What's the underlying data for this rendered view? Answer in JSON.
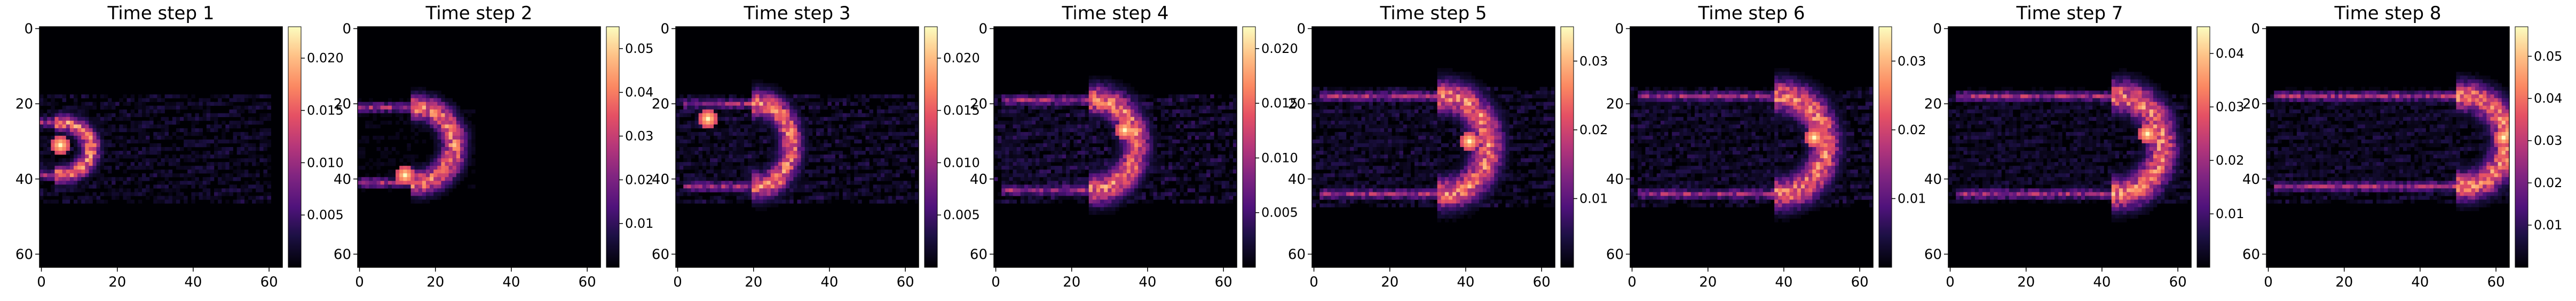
{
  "chart_data": {
    "type": "heatmap",
    "colormap": "magma",
    "grid": false,
    "xlim": [
      0,
      63
    ],
    "ylim": [
      63,
      0
    ],
    "x_ticks": [
      "0",
      "20",
      "40",
      "60"
    ],
    "y_ticks": [
      "0",
      "20",
      "40",
      "60"
    ],
    "panels": [
      {
        "title": "Time step 1",
        "vmax": 0.023,
        "colorbar_ticks": [
          "0.005",
          "0.010",
          "0.015",
          "0.020"
        ],
        "front": {
          "x0": 0,
          "x1": 13,
          "yc": 32,
          "rx": 8,
          "ry": 7,
          "peak_x": 5,
          "peak_y": 31
        },
        "wake": {
          "x_from": 0,
          "x_to": 60,
          "y_top": 18,
          "y_bottom": 46,
          "intensity": 0.2
        }
      },
      {
        "title": "Time step 2",
        "vmax": 0.055,
        "colorbar_ticks": [
          "0.01",
          "0.02",
          "0.03",
          "0.04",
          "0.05"
        ],
        "front": {
          "x0": 0,
          "x1": 25,
          "yc": 31,
          "rx": 10,
          "ry": 10,
          "peak_x": 12,
          "peak_y": 39
        },
        "wake": {
          "x_from": 0,
          "x_to": 30,
          "y_top": 20,
          "y_bottom": 42,
          "intensity": 0.08
        }
      },
      {
        "title": "Time step 3",
        "vmax": 0.023,
        "colorbar_ticks": [
          "0.005",
          "0.010",
          "0.015",
          "0.020"
        ],
        "front": {
          "x0": 2,
          "x1": 30,
          "yc": 31,
          "rx": 9,
          "ry": 11,
          "peak_x": 8,
          "peak_y": 24
        },
        "wake": {
          "x_from": 0,
          "x_to": 63,
          "y_top": 18,
          "y_bottom": 46,
          "intensity": 0.22
        }
      },
      {
        "title": "Time step 4",
        "vmax": 0.022,
        "colorbar_ticks": [
          "0.005",
          "0.010",
          "0.015",
          "0.020"
        ],
        "front": {
          "x0": 2,
          "x1": 37,
          "yc": 31,
          "rx": 11,
          "ry": 12,
          "peak_x": 34,
          "peak_y": 27
        },
        "wake": {
          "x_from": 0,
          "x_to": 63,
          "y_top": 18,
          "y_bottom": 46,
          "intensity": 0.25
        }
      },
      {
        "title": "Time step 5",
        "vmax": 0.035,
        "colorbar_ticks": [
          "0.01",
          "0.02",
          "0.03"
        ],
        "front": {
          "x0": 2,
          "x1": 46,
          "yc": 31,
          "rx": 12,
          "ry": 13,
          "peak_x": 41,
          "peak_y": 30
        },
        "wake": {
          "x_from": 0,
          "x_to": 63,
          "y_top": 16,
          "y_bottom": 47,
          "intensity": 0.22
        }
      },
      {
        "title": "Time step 6",
        "vmax": 0.035,
        "colorbar_ticks": [
          "0.01",
          "0.02",
          "0.03"
        ],
        "front": {
          "x0": 2,
          "x1": 51,
          "yc": 31,
          "rx": 12,
          "ry": 13,
          "peak_x": 48,
          "peak_y": 29
        },
        "wake": {
          "x_from": 0,
          "x_to": 63,
          "y_top": 16,
          "y_bottom": 47,
          "intensity": 0.22
        }
      },
      {
        "title": "Time step 7",
        "vmax": 0.045,
        "colorbar_ticks": [
          "0.01",
          "0.02",
          "0.03",
          "0.04"
        ],
        "front": {
          "x0": 2,
          "x1": 56,
          "yc": 31,
          "rx": 12,
          "ry": 13,
          "peak_x": 52,
          "peak_y": 28
        },
        "wake": {
          "x_from": 0,
          "x_to": 63,
          "y_top": 18,
          "y_bottom": 46,
          "intensity": 0.2
        }
      },
      {
        "title": "Time step 8",
        "vmax": 0.057,
        "colorbar_ticks": [
          "0.01",
          "0.02",
          "0.03",
          "0.04",
          "0.05"
        ],
        "front": {
          "x0": 2,
          "x1": 63,
          "yc": 30,
          "rx": 12,
          "ry": 12,
          "peak_x": 62,
          "peak_y": 29
        },
        "wake": {
          "x_from": 0,
          "x_to": 63,
          "y_top": 18,
          "y_bottom": 46,
          "intensity": 0.2
        }
      }
    ]
  }
}
